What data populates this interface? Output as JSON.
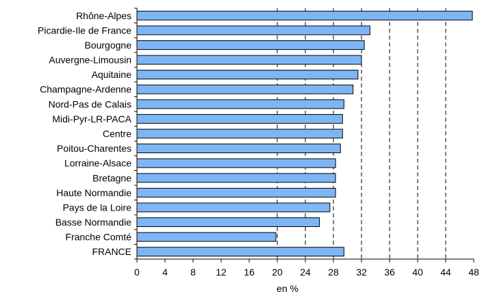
{
  "chart_data": {
    "type": "bar",
    "orientation": "horizontal",
    "categories": [
      "Rhône-Alpes",
      "Picardie-Ile de France",
      "Bourgogne",
      "Auvergne-Limousin",
      "Aquitaine",
      "Champagne-Ardenne",
      "Nord-Pas de Calais",
      "Midi-Pyr-LR-PACA",
      "Centre",
      "Poitou-Charentes",
      "Lorraine-Alsace",
      "Bretagne",
      "Haute Normandie",
      "Pays de la Loire",
      "Basse Normandie",
      "Franche Comté",
      "FRANCE"
    ],
    "values": [
      47.8,
      33.2,
      32.4,
      32.0,
      31.5,
      30.8,
      29.5,
      29.3,
      29.3,
      29.0,
      28.3,
      28.3,
      28.3,
      27.5,
      26.0,
      19.8,
      29.5
    ],
    "xlabel": "en %",
    "xlim": [
      0,
      48
    ],
    "xticks": [
      "0",
      "4",
      "8",
      "12",
      "16",
      "20",
      "24",
      "28",
      "32",
      "36",
      "40",
      "44",
      "48"
    ],
    "grid": "vertical dashed lines from 20 to 44",
    "bar_color": "#7eb6f5"
  }
}
